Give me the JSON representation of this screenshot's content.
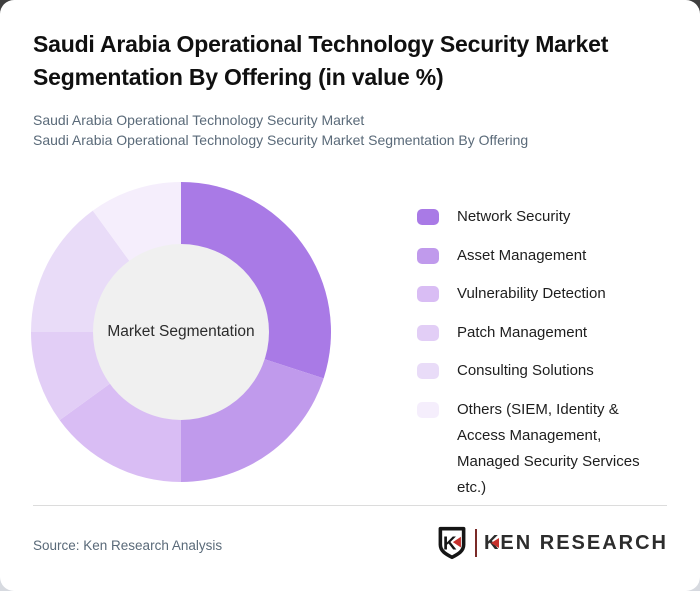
{
  "header": {
    "title": "Saudi Arabia Operational Technology Security Market Segmentation By Offering (in value %)",
    "subtitle_line1": "Saudi Arabia Operational Technology Security Market",
    "subtitle_line2": "Saudi Arabia Operational Technology Security Market Segmentation By Offering"
  },
  "chart_data": {
    "type": "pie",
    "variant": "donut",
    "title": "Saudi Arabia Operational Technology Security Market Segmentation By Offering (in value %)",
    "center_label": "Market Segmentation",
    "categories": [
      "Network Security",
      "Asset Management",
      "Vulnerability Detection",
      "Patch Management",
      "Consulting Solutions",
      "Others (SIEM, Identity & Access Management, Managed Security Services etc.)"
    ],
    "values": [
      30,
      20,
      15,
      10,
      15,
      10
    ],
    "colors": [
      "#a97ae6",
      "#c09aec",
      "#d9bdf4",
      "#e2cef6",
      "#e9dcf8",
      "#f5eefc"
    ],
    "center_circle_color": "#f0f0f0",
    "start_angle_deg": 0,
    "direction": "clockwise",
    "legend_position": "right",
    "data_labels_shown": false
  },
  "footer": {
    "source_text": "Source: Ken Research Analysis",
    "logo": {
      "badge_letter": "K",
      "wordmark": "KEN RESEARCH",
      "accent_color": "#c5302c"
    }
  }
}
